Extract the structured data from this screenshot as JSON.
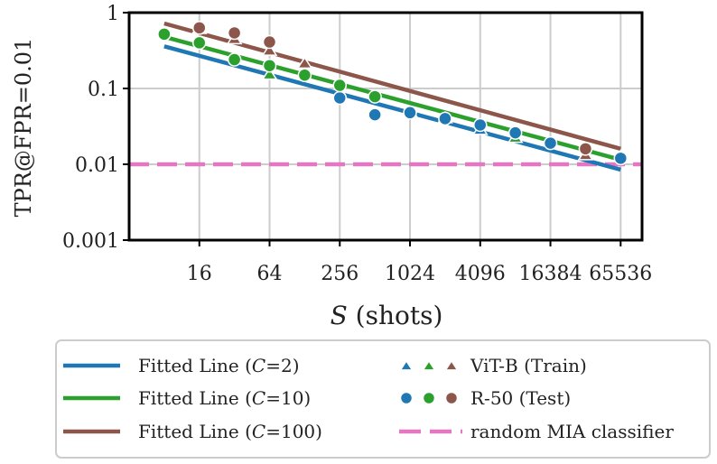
{
  "chart_data": {
    "type": "scatter",
    "title": "",
    "xlabel_var": "S",
    "xlabel_rest": " (shots)",
    "ylabel": "TPR@FPR=0.01",
    "xscale": "log2",
    "yscale": "log10",
    "xlim": [
      4,
      100000
    ],
    "ylim": [
      0.001,
      1
    ],
    "xticks": [
      {
        "value": 16,
        "label": "16"
      },
      {
        "value": 64,
        "label": "64"
      },
      {
        "value": 256,
        "label": "256"
      },
      {
        "value": 1024,
        "label": "1024"
      },
      {
        "value": 4096,
        "label": "4096"
      },
      {
        "value": 16384,
        "label": "16384"
      },
      {
        "value": 65536,
        "label": "65536"
      }
    ],
    "yticks": [
      {
        "value": 0.001,
        "label": "0.001"
      },
      {
        "value": 0.01,
        "label": "0.01"
      },
      {
        "value": 0.1,
        "label": "0.1"
      },
      {
        "value": 1,
        "label": "1"
      }
    ],
    "grid": true,
    "fitted_lines": [
      {
        "name": "Fitted Line (C=2)",
        "C": "2",
        "color": "#1f77b4",
        "x": [
          8,
          65536
        ],
        "y": [
          0.36,
          0.0085
        ]
      },
      {
        "name": "Fitted Line (C=10)",
        "C": "10",
        "color": "#2ca02c",
        "x": [
          8,
          65536
        ],
        "y": [
          0.48,
          0.0115
        ]
      },
      {
        "name": "Fitted Line (C=100)",
        "C": "100",
        "color": "#8c564b",
        "x": [
          8,
          65536
        ],
        "y": [
          0.72,
          0.016
        ]
      }
    ],
    "baseline": {
      "name": "random MIA classifier",
      "color": "#e377c2",
      "y": 0.01
    },
    "series": [
      {
        "name": "ViT-B (Train) C=2",
        "marker": "triangle",
        "color": "#1f77b4",
        "x": [
          64,
          1024,
          4096,
          65536
        ],
        "y": [
          0.15,
          0.048,
          0.028,
          0.0125
        ]
      },
      {
        "name": "ViT-B (Train) C=10",
        "marker": "triangle",
        "color": "#2ca02c",
        "x": [
          64,
          2048,
          8192
        ],
        "y": [
          0.15,
          0.04,
          0.022
        ]
      },
      {
        "name": "ViT-B (Train) C=100",
        "marker": "triangle",
        "color": "#8c564b",
        "x": [
          16,
          32,
          64,
          128,
          32768
        ],
        "y": [
          0.6,
          0.44,
          0.31,
          0.21,
          0.013
        ]
      },
      {
        "name": "R-50 (Test) C=2",
        "marker": "circle",
        "color": "#1f77b4",
        "x": [
          256,
          512,
          1024,
          2048,
          4096,
          8192,
          16384,
          65536
        ],
        "y": [
          0.075,
          0.045,
          0.048,
          0.04,
          0.033,
          0.026,
          0.019,
          0.012
        ]
      },
      {
        "name": "R-50 (Test) C=10",
        "marker": "circle",
        "color": "#2ca02c",
        "x": [
          8,
          16,
          32,
          64,
          128,
          256,
          512
        ],
        "y": [
          0.52,
          0.4,
          0.24,
          0.2,
          0.15,
          0.11,
          0.078
        ]
      },
      {
        "name": "R-50 (Test) C=100",
        "marker": "circle",
        "color": "#8c564b",
        "x": [
          16,
          32,
          64,
          32768
        ],
        "y": [
          0.63,
          0.54,
          0.41,
          0.016
        ]
      }
    ],
    "legend": {
      "placement": "below",
      "entries": [
        {
          "prefix": "Fitted Line (",
          "var": "C",
          "suffix": "=2)",
          "kind": "line",
          "color": "#1f77b4"
        },
        {
          "prefix": "Fitted Line (",
          "var": "C",
          "suffix": "=10)",
          "kind": "line",
          "color": "#2ca02c"
        },
        {
          "prefix": "Fitted Line (",
          "var": "C",
          "suffix": "=100)",
          "kind": "line",
          "color": "#8c564b"
        },
        {
          "prefix": "ViT-B (Train)",
          "var": "",
          "suffix": "",
          "kind": "triangles",
          "colors": [
            "#1f77b4",
            "#2ca02c",
            "#8c564b"
          ]
        },
        {
          "prefix": "R-50 (Test)",
          "var": "",
          "suffix": "",
          "kind": "circles",
          "colors": [
            "#1f77b4",
            "#2ca02c",
            "#8c564b"
          ]
        },
        {
          "prefix": "random MIA classifier",
          "var": "",
          "suffix": "",
          "kind": "dashed",
          "color": "#e377c2"
        }
      ]
    }
  }
}
